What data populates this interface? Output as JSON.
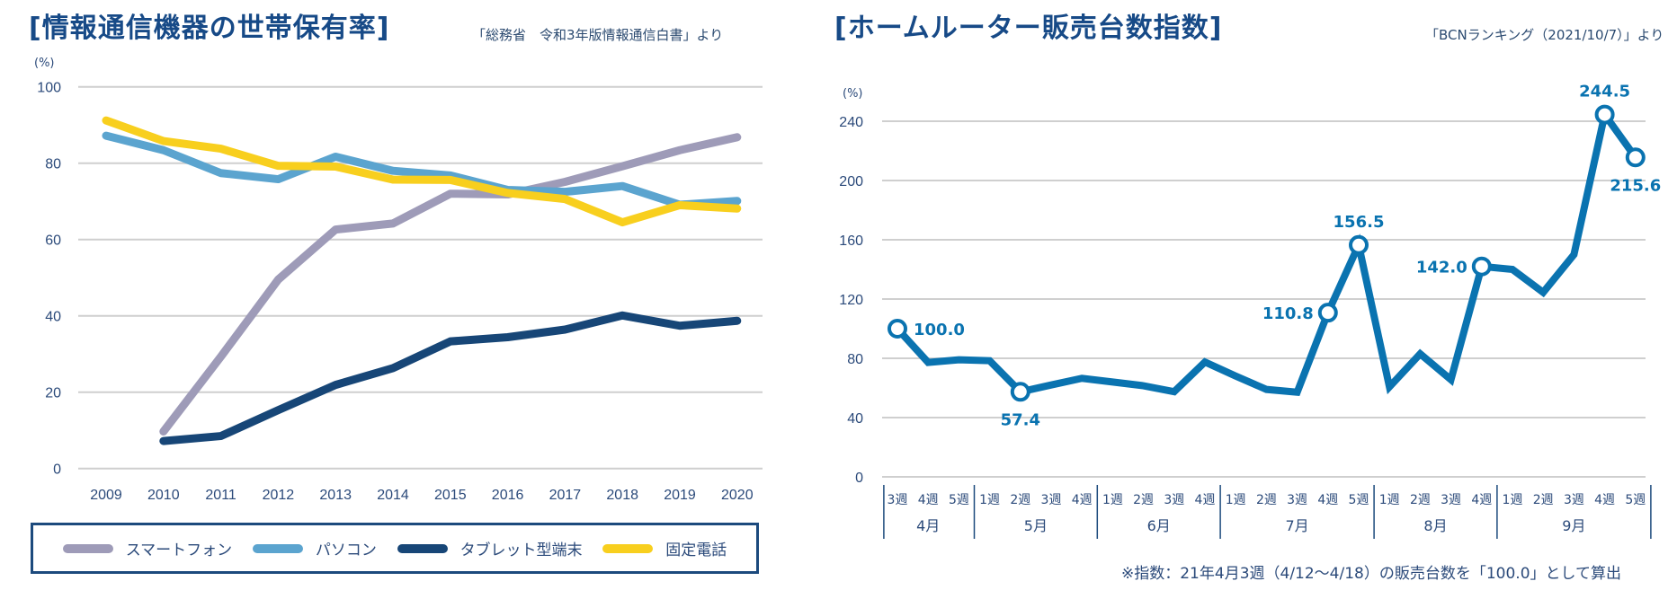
{
  "left": {
    "title": "[情報通信機器の世帯保有率]",
    "source": "「総務省　令和3年版情報通信白書」より",
    "legend": [
      {
        "label": "スマートフォン",
        "color": "#9e9bb8"
      },
      {
        "label": "パソコン",
        "color": "#5ba4cf"
      },
      {
        "label": "タブレット型端末",
        "color": "#174677"
      },
      {
        "label": "固定電話",
        "color": "#f8cf1e"
      }
    ]
  },
  "right": {
    "title": "[ホームルーター販売台数指数]",
    "source": "「BCNランキング（2021/10/7）」より",
    "footnote": "※指数：21年4月3週（4/12～4/18）の販売台数を「100.0」として算出"
  },
  "chart_data": [
    {
      "type": "line",
      "title": "[情報通信機器の世帯保有率]",
      "ylabel": "(%)",
      "xlabel": "",
      "ylim": [
        0,
        100
      ],
      "yticks": [
        0,
        20,
        40,
        60,
        80,
        100
      ],
      "grid": true,
      "legend_position": "bottom",
      "x": [
        "2009",
        "2010",
        "2011",
        "2012",
        "2013",
        "2014",
        "2015",
        "2016",
        "2017",
        "2018",
        "2019",
        "2020"
      ],
      "series": [
        {
          "name": "スマートフォン",
          "color": "#9e9bb8",
          "values": [
            null,
            9.7,
            29.3,
            49.5,
            62.6,
            64.2,
            72.0,
            71.8,
            75.1,
            79.2,
            83.4,
            86.8
          ]
        },
        {
          "name": "パソコン",
          "color": "#5ba4cf",
          "values": [
            87.2,
            83.4,
            77.4,
            75.8,
            81.7,
            78.0,
            76.8,
            73.0,
            72.5,
            74.0,
            69.1,
            70.1
          ]
        },
        {
          "name": "タブレット型端末",
          "color": "#174677",
          "values": [
            null,
            7.2,
            8.5,
            15.3,
            21.9,
            26.3,
            33.3,
            34.4,
            36.4,
            40.1,
            37.4,
            38.7
          ]
        },
        {
          "name": "固定電話",
          "color": "#f8cf1e",
          "values": [
            91.2,
            85.8,
            83.8,
            79.3,
            79.1,
            75.7,
            75.6,
            72.2,
            70.6,
            64.5,
            69.0,
            68.1
          ]
        }
      ]
    },
    {
      "type": "line",
      "title": "[ホームルーター販売台数指数]",
      "ylabel": "(%)",
      "xlabel": "",
      "ylim": [
        0,
        250
      ],
      "yticks": [
        0,
        40,
        80,
        120,
        160,
        200,
        240
      ],
      "grid": true,
      "color": "#0a73b0",
      "months": [
        {
          "label": "4月",
          "weeks": [
            "3週",
            "4週",
            "5週"
          ]
        },
        {
          "label": "5月",
          "weeks": [
            "1週",
            "2週",
            "3週",
            "4週"
          ]
        },
        {
          "label": "6月",
          "weeks": [
            "1週",
            "2週",
            "3週",
            "4週"
          ]
        },
        {
          "label": "7月",
          "weeks": [
            "1週",
            "2週",
            "3週",
            "4週",
            "5週"
          ]
        },
        {
          "label": "8月",
          "weeks": [
            "1週",
            "2週",
            "3週",
            "4週"
          ]
        },
        {
          "label": "9月",
          "weeks": [
            "1週",
            "2週",
            "3週",
            "4週",
            "5週"
          ]
        }
      ],
      "values": [
        100.0,
        77.2,
        79.0,
        78.4,
        57.4,
        62.0,
        66.5,
        64.0,
        61.5,
        57.5,
        77.5,
        68.0,
        59.0,
        57.1,
        110.8,
        156.5,
        60.7,
        83.0,
        65.6,
        142.0,
        140.0,
        124.5,
        150.0,
        244.5,
        215.6
      ],
      "labeled_points": [
        {
          "index": 0,
          "label": "100.0",
          "pos": "right"
        },
        {
          "index": 4,
          "label": "57.4",
          "pos": "below"
        },
        {
          "index": 14,
          "label": "110.8",
          "pos": "left"
        },
        {
          "index": 15,
          "label": "156.5",
          "pos": "above"
        },
        {
          "index": 19,
          "label": "142.0",
          "pos": "left"
        },
        {
          "index": 23,
          "label": "244.5",
          "pos": "above"
        },
        {
          "index": 24,
          "label": "215.6",
          "pos": "below"
        }
      ]
    }
  ]
}
